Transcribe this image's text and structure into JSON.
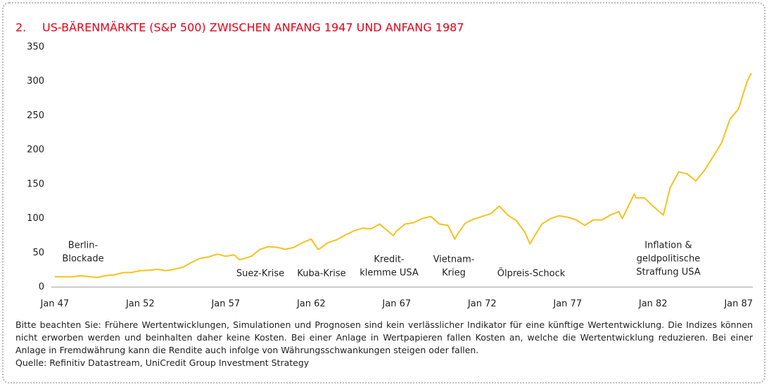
{
  "chart_data": {
    "type": "line",
    "number": "2.",
    "title": "US-BÄRENMÄRKTE (S&P 500) ZWISCHEN ANFANG 1947 UND ANFANG 1987",
    "x": [
      1947.0,
      1947.5,
      1948.0,
      1948.5,
      1949.0,
      1949.5,
      1950.0,
      1950.5,
      1951.0,
      1951.5,
      1952.0,
      1952.5,
      1953.0,
      1953.5,
      1954.0,
      1954.5,
      1955.0,
      1955.5,
      1956.0,
      1956.5,
      1957.0,
      1957.5,
      1957.8,
      1958.0,
      1958.5,
      1959.0,
      1959.5,
      1960.0,
      1960.5,
      1961.0,
      1961.5,
      1962.0,
      1962.4,
      1962.5,
      1963.0,
      1963.5,
      1964.0,
      1964.5,
      1965.0,
      1965.5,
      1966.0,
      1966.8,
      1967.0,
      1967.5,
      1968.0,
      1968.5,
      1969.0,
      1969.5,
      1970.0,
      1970.4,
      1970.5,
      1971.0,
      1971.5,
      1972.0,
      1972.5,
      1973.0,
      1973.5,
      1974.0,
      1974.5,
      1974.8,
      1975.0,
      1975.5,
      1976.0,
      1976.5,
      1977.0,
      1977.5,
      1978.0,
      1978.5,
      1979.0,
      1979.5,
      1980.0,
      1980.2,
      1980.9,
      1981.0,
      1981.5,
      1982.0,
      1982.6,
      1983.0,
      1983.5,
      1984.0,
      1984.5,
      1985.0,
      1985.5,
      1986.0,
      1986.5,
      1987.0,
      1987.5,
      1987.75
    ],
    "series": [
      {
        "name": "S&P 500",
        "color": "#f6c21c",
        "values": [
          15.2,
          15.0,
          15.0,
          16.5,
          15.3,
          14.0,
          16.8,
          18.0,
          21.0,
          21.5,
          24.0,
          24.5,
          26.0,
          24.0,
          26.0,
          29.0,
          36.0,
          42.0,
          44.0,
          48.0,
          45.0,
          47.0,
          40.0,
          41.0,
          45.0,
          55.0,
          59.0,
          58.0,
          55.0,
          58.0,
          65.0,
          70.0,
          55.0,
          56.0,
          65.0,
          69.0,
          76.0,
          82.0,
          86.0,
          85.0,
          92.0,
          75.0,
          82.0,
          92.0,
          94.0,
          100.0,
          103.0,
          92.0,
          90.0,
          70.0,
          75.0,
          93.0,
          99.0,
          103.0,
          107.0,
          118.0,
          105.0,
          97.0,
          80.0,
          63.0,
          72.0,
          92.0,
          100.0,
          104.0,
          102.0,
          98.0,
          90.0,
          98.0,
          98.0,
          105.0,
          110.0,
          100.0,
          136.0,
          130.0,
          130.0,
          118.0,
          105.0,
          145.0,
          168.0,
          165.0,
          155.0,
          170.0,
          190.0,
          210.0,
          245.0,
          260.0,
          300.0,
          312.0
        ]
      }
    ],
    "xlim": [
      1946.8,
      1988.0
    ],
    "xticks": [
      {
        "value": 1947,
        "label": "Jan 47"
      },
      {
        "value": 1952,
        "label": "Jan 52"
      },
      {
        "value": 1957,
        "label": "Jan 57"
      },
      {
        "value": 1962,
        "label": "Jan 62"
      },
      {
        "value": 1967,
        "label": "Jan 67"
      },
      {
        "value": 1972,
        "label": "Jan 72"
      },
      {
        "value": 1977,
        "label": "Jan 77"
      },
      {
        "value": 1982,
        "label": "Jan 82"
      },
      {
        "value": 1987,
        "label": "Jan 87"
      }
    ],
    "ylim": [
      0,
      350
    ],
    "yticks": [
      0,
      50,
      100,
      150,
      200,
      250,
      300,
      350
    ],
    "annotations": [
      {
        "lines": [
          "Berlin-",
          "Blockade"
        ]
      },
      {
        "lines": [
          "Suez-Krise"
        ]
      },
      {
        "lines": [
          "Kuba-Krise"
        ]
      },
      {
        "lines": [
          "Kredit-",
          "klemme USA"
        ]
      },
      {
        "lines": [
          "Vietnam-",
          "Krieg"
        ]
      },
      {
        "lines": [
          "Ölpreis-Schock"
        ]
      },
      {
        "lines": [
          "Inflation &",
          "geldpolitische",
          "Straffung USA"
        ]
      }
    ],
    "footnote": "Bitte beachten Sie: Frühere Wertentwicklungen, Simulationen und Prognosen sind kein verlässlicher Indikator für eine künftige Wertentwicklung. Die Indizes können nicht erworben werden und beinhalten daher keine Kosten. Bei einer Anlage in Wertpapieren fallen Kosten an, welche die Wertentwicklung reduzieren. Bei einer Anlage in Fremdwährung kann die Rendite auch infolge von Währungsschwankungen steigen oder fallen.",
    "source": "Quelle: Refinitiv Datastream, UniCredit Group Investment Strategy"
  }
}
